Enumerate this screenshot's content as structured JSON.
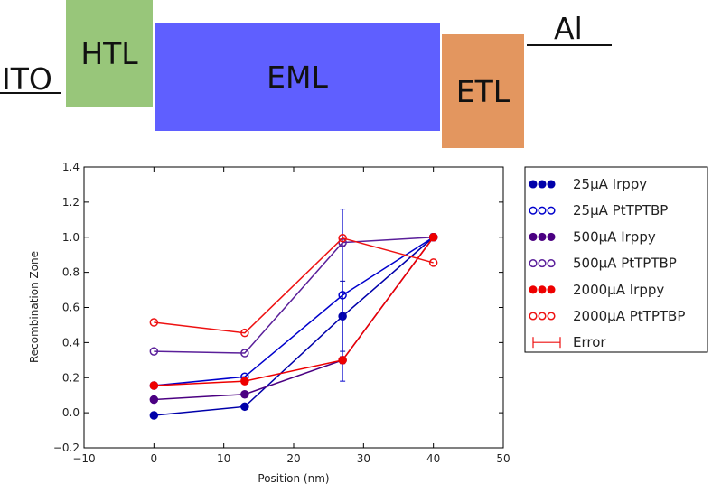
{
  "device": {
    "electrode_left": "ITO",
    "electrode_right": "Al",
    "layers": [
      {
        "label": "HTL",
        "color": "#98c67a"
      },
      {
        "label": "EML",
        "color": "#5f5fff"
      },
      {
        "label": "ETL",
        "color": "#e3965f"
      }
    ]
  },
  "chart_data": {
    "type": "line",
    "xlabel": "Position (nm)",
    "ylabel": "Recombination Zone",
    "xlim": [
      -10,
      50
    ],
    "ylim": [
      -0.2,
      1.4
    ],
    "xticks": [
      "−10",
      "0",
      "10",
      "20",
      "30",
      "40",
      "50"
    ],
    "yticks": [
      "−0.2",
      "0.0",
      "0.2",
      "0.4",
      "0.6",
      "0.8",
      "1.0",
      "1.2",
      "1.4"
    ],
    "x": [
      0,
      13,
      27,
      40
    ],
    "grid": false,
    "legend_position": "outside-right",
    "series": [
      {
        "name": "25μA Irppy",
        "color": "#0000aa",
        "filled": true,
        "values": [
          -0.015,
          0.035,
          0.55,
          1.0
        ],
        "errors": [
          0.005,
          0.005,
          0.2,
          0.01
        ]
      },
      {
        "name": "25μA PtTPTBP",
        "color": "#0000cc",
        "filled": false,
        "values": [
          0.155,
          0.205,
          0.67,
          1.0
        ],
        "errors": [
          0.005,
          0.005,
          0.49,
          0.02
        ]
      },
      {
        "name": "500μA Irppy",
        "color": "#4b0082",
        "filled": true,
        "values": [
          0.075,
          0.105,
          0.3,
          1.0
        ],
        "errors": [
          0.005,
          0.005,
          0.02,
          0.01
        ]
      },
      {
        "name": "500μA PtTPTBP",
        "color": "#5a1f9a",
        "filled": false,
        "values": [
          0.35,
          0.34,
          0.97,
          1.0
        ],
        "errors": [
          0.005,
          0.005,
          0.02,
          0.01
        ]
      },
      {
        "name": "2000μA Irppy",
        "color": "#ee0000",
        "filled": true,
        "values": [
          0.155,
          0.18,
          0.3,
          1.0
        ],
        "errors": [
          0.005,
          0.005,
          0.01,
          0.01
        ]
      },
      {
        "name": "2000μA PtTPTBP",
        "color": "#ee1111",
        "filled": false,
        "values": [
          0.515,
          0.455,
          0.995,
          0.855
        ],
        "errors": [
          0.005,
          0.005,
          0.01,
          0.01
        ]
      }
    ],
    "error_legend": {
      "name": "Error",
      "color": "#ee1111"
    }
  }
}
